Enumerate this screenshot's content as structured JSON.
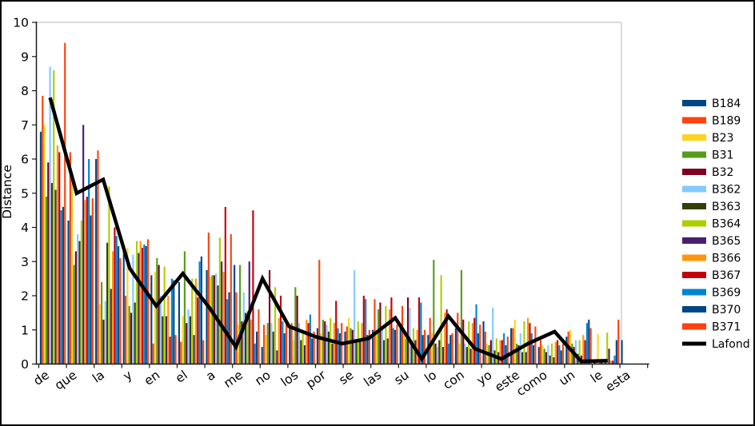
{
  "chart_data": {
    "type": "bar+line",
    "ylabel": "Distance",
    "ylim": [
      0,
      10
    ],
    "grid": "off",
    "legend_position": "right",
    "categories": [
      "de",
      "que",
      "la",
      "y",
      "en",
      "el",
      "a",
      "me",
      "no",
      "los",
      "por",
      "se",
      "las",
      "su",
      "lo",
      "con",
      "yo",
      "este",
      "como",
      "un",
      "le",
      "esta"
    ],
    "series": [
      {
        "name": "B184",
        "color": "#004586",
        "values": [
          6.8,
          4.2,
          6.0,
          3.3,
          2.6,
          2.4,
          2.75,
          2.9,
          0.5,
          1.05,
          1.05,
          0.95,
          1.0,
          1.15,
          0.85,
          1.05,
          1.25,
          1.05,
          0.5,
          0.8,
          0.05,
          0.7
        ]
      },
      {
        "name": "B189",
        "color": "#ff420e",
        "values": [
          7.85,
          6.2,
          6.25,
          2.0,
          0.6,
          0.65,
          3.85,
          2.1,
          1.15,
          1.2,
          3.05,
          1.1,
          1.9,
          1.7,
          1.35,
          1.5,
          0.95,
          1.05,
          0.7,
          0.95,
          0.05,
          0
        ]
      },
      {
        "name": "B23",
        "color": "#ffd320",
        "values": [
          7.0,
          5.6,
          1.75,
          3.4,
          2.7,
          1.4,
          2.55,
          1.15,
          0.85,
          0.7,
          0.9,
          1.35,
          1.0,
          0.9,
          0.9,
          0.6,
          0.6,
          1.3,
          0.55,
          1.0,
          0.88,
          0
        ]
      },
      {
        "name": "B31",
        "color": "#579d1c",
        "values": [
          4.9,
          2.9,
          2.4,
          1.7,
          3.1,
          3.3,
          2.6,
          2.9,
          1.2,
          2.25,
          1.3,
          1.05,
          1.6,
          0.75,
          3.05,
          2.75,
          0.55,
          0.6,
          0.45,
          0.6,
          0.05,
          0
        ]
      },
      {
        "name": "B32",
        "color": "#7e0021",
        "values": [
          5.9,
          3.3,
          1.3,
          1.5,
          2.9,
          1.2,
          2.6,
          1.25,
          2.75,
          2.0,
          1.25,
          1.0,
          1.8,
          1.95,
          0.6,
          1.3,
          0.7,
          0.55,
          0.35,
          0.5,
          0.05,
          0
        ]
      },
      {
        "name": "B362",
        "color": "#83caff",
        "values": [
          8.7,
          3.8,
          1.85,
          3.2,
          2.0,
          1.6,
          2.65,
          2.1,
          1.2,
          1.2,
          1.15,
          2.75,
          1.05,
          1.65,
          0.5,
          0.6,
          1.65,
          0.9,
          0.55,
          0.7,
          0.05,
          0
        ]
      },
      {
        "name": "B363",
        "color": "#314004",
        "values": [
          5.3,
          3.6,
          3.55,
          1.8,
          1.4,
          1.4,
          2.3,
          1.5,
          0.95,
          0.7,
          0.95,
          0.7,
          0.7,
          0.6,
          0.7,
          0.5,
          0.4,
          0.35,
          0.25,
          0.3,
          0.1,
          0
        ]
      },
      {
        "name": "B364",
        "color": "#aecf00",
        "values": [
          8.6,
          4.2,
          5.2,
          3.6,
          2.85,
          2.5,
          3.7,
          1.55,
          2.25,
          1.0,
          1.35,
          1.25,
          1.7,
          1.05,
          2.6,
          1.25,
          0.75,
          1.25,
          0.6,
          0.7,
          0.92,
          0
        ]
      },
      {
        "name": "B365",
        "color": "#4b1f6f",
        "values": [
          5.1,
          7.0,
          2.2,
          3.25,
          1.4,
          0.85,
          3.0,
          3.0,
          0.4,
          0.55,
          0.6,
          0.75,
          0.75,
          0.7,
          0.5,
          0.45,
          0.35,
          0.35,
          0.2,
          0.25,
          0.45,
          0
        ]
      },
      {
        "name": "B366",
        "color": "#ff950e",
        "values": [
          6.4,
          4.8,
          3.3,
          3.6,
          2.0,
          2.5,
          2.7,
          1.3,
          1.35,
          1.3,
          1.2,
          1.2,
          1.6,
          1.0,
          1.5,
          1.2,
          0.7,
          1.35,
          0.65,
          0.85,
          0.1,
          0
        ]
      },
      {
        "name": "B367",
        "color": "#c5000b",
        "values": [
          6.2,
          4.9,
          4.0,
          3.4,
          0.8,
          1.95,
          4.6,
          4.5,
          2.0,
          1.2,
          1.85,
          2.0,
          1.95,
          1.95,
          1.6,
          1.35,
          0.7,
          1.2,
          0.7,
          0.7,
          0.1,
          0
        ]
      },
      {
        "name": "B369",
        "color": "#0084d1",
        "values": [
          4.5,
          6.0,
          3.75,
          3.5,
          2.5,
          3.0,
          1.9,
          0.6,
          1.25,
          1.45,
          1.05,
          1.9,
          1.05,
          1.8,
          0.6,
          1.75,
          0.9,
          0.9,
          0.55,
          1.2,
          0.25,
          0
        ]
      },
      {
        "name": "B370",
        "color": "#004586",
        "values": [
          4.6,
          4.35,
          3.45,
          3.45,
          2.45,
          3.15,
          2.1,
          0.95,
          0.9,
          0.75,
          0.9,
          0.85,
          1.0,
          0.85,
          0.85,
          0.9,
          0.55,
          0.55,
          0.4,
          1.3,
          0.7,
          0
        ]
      },
      {
        "name": "B371",
        "color": "#ff420e",
        "values": [
          9.4,
          4.85,
          3.1,
          3.65,
          0.85,
          0.7,
          3.8,
          1.6,
          1.15,
          0.95,
          1.2,
          1.0,
          1.15,
          1.0,
          0.9,
          1.15,
          0.8,
          1.1,
          0.6,
          1.05,
          1.3,
          0
        ]
      }
    ],
    "line_series": {
      "name": "Lafond",
      "color": "#000000",
      "values": [
        7.8,
        5.0,
        5.4,
        2.8,
        1.7,
        2.65,
        1.65,
        0.5,
        2.5,
        1.1,
        0.8,
        0.6,
        0.75,
        1.35,
        0.15,
        1.4,
        0.45,
        0.15,
        0.6,
        0.95,
        0.08,
        0.1
      ]
    },
    "y_ticks": [
      0,
      1,
      2,
      3,
      4,
      5,
      6,
      7,
      8,
      9,
      10
    ]
  }
}
